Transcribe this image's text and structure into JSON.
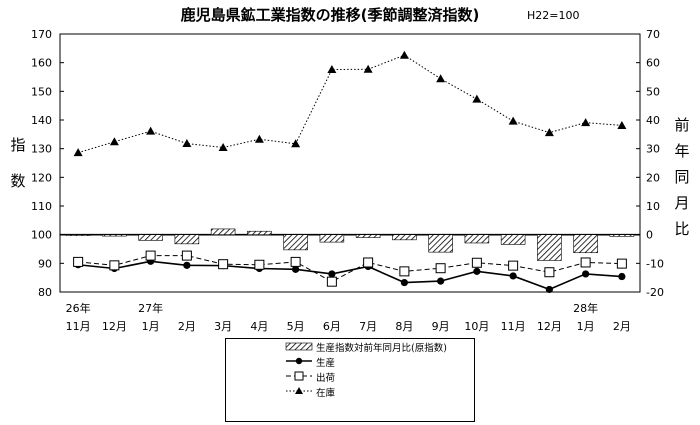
{
  "title": "鹿児島県鉱工業指数の推移(季節調整済指数)",
  "base_note": "H22=100",
  "left_axis_label": [
    "指",
    "数"
  ],
  "right_axis_label": [
    "前",
    "年",
    "同",
    "月",
    "比"
  ],
  "legend": {
    "bar": "生産指数対前年同月比(原指数)",
    "production": "生産",
    "shipments": "出荷",
    "inventory": "在庫"
  },
  "chart_data": {
    "type": "line",
    "categories": [
      "11月",
      "12月",
      "1月",
      "2月",
      "3月",
      "4月",
      "5月",
      "6月",
      "7月",
      "8月",
      "9月",
      "10月",
      "11月",
      "12月",
      "1月",
      "2月"
    ],
    "year_labels": [
      {
        "index": 0,
        "label": "26年"
      },
      {
        "index": 2,
        "label": "27年"
      },
      {
        "index": 14,
        "label": "28年"
      }
    ],
    "left_axis": {
      "min": 80,
      "max": 170,
      "step": 10,
      "ticks": [
        "80",
        "90",
        "100",
        "110",
        "120",
        "130",
        "140",
        "150",
        "160",
        "170"
      ]
    },
    "right_axis": {
      "min": -20,
      "max": 70,
      "step": 10,
      "ticks": [
        "-20",
        "-10",
        "0",
        "10",
        "20",
        "30",
        "40",
        "50",
        "60",
        "70"
      ]
    },
    "series": [
      {
        "name": "生産指数対前年同月比(原指数)",
        "type": "bar",
        "axis": "right",
        "color": "#000000",
        "values": [
          -0.3,
          -0.5,
          -2.0,
          -3.2,
          2.0,
          1.2,
          -5.3,
          -2.6,
          -1.0,
          -1.8,
          -6.1,
          -2.9,
          -3.4,
          -9.0,
          -6.3,
          -0.6
        ]
      },
      {
        "name": "生産",
        "type": "line",
        "axis": "left",
        "marker": "circle",
        "line": "solid",
        "color": "#000000",
        "values": [
          89.5,
          88.2,
          90.7,
          89.3,
          89.2,
          88.2,
          87.9,
          86.3,
          88.9,
          83.3,
          83.8,
          87.2,
          85.6,
          80.9,
          86.3,
          85.4
        ]
      },
      {
        "name": "出荷",
        "type": "line",
        "axis": "left",
        "marker": "square",
        "line": "dashed",
        "color": "#000000",
        "values": [
          90.5,
          89.3,
          92.7,
          92.7,
          89.7,
          89.5,
          90.5,
          83.6,
          90.3,
          87.2,
          88.3,
          90.2,
          89.2,
          86.9,
          90.3,
          89.9
        ]
      },
      {
        "name": "在庫",
        "type": "line",
        "axis": "left",
        "marker": "triangle",
        "line": "dotted",
        "color": "#000000",
        "values": [
          128.6,
          132.4,
          136.1,
          131.8,
          130.4,
          133.3,
          131.7,
          157.6,
          157.7,
          162.6,
          154.4,
          147.3,
          139.6,
          135.6,
          139.1,
          138.1
        ]
      }
    ],
    "grid": false
  }
}
